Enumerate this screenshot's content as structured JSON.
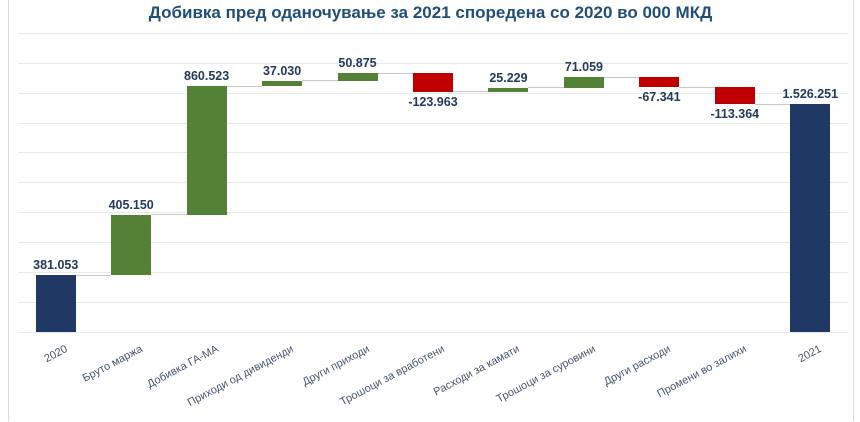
{
  "title": "Добивка пред оданочување за 2021 споредена со 2020 во 000 МКД",
  "colors": {
    "increase": "#538135",
    "decrease": "#C00000",
    "total": "#1F3864",
    "title_text": "#1F4E79",
    "data_label": "#24395E",
    "axis_label": "#44546A",
    "gridline": "#E9E9E9",
    "border": "#D9D9D9",
    "connector": "#C9C9C9",
    "background": "#FFFFFF"
  },
  "chart_data": {
    "type": "bar",
    "subtype": "waterfall",
    "title": "Добивка пред оданочување за 2021 споредена со 2020 во 000 МКД",
    "unit": "000 МКД",
    "categories": [
      "2020",
      "Бруто маржа",
      "Добивка ГА-МА",
      "Приходи од дивиденди",
      "Други приходи",
      "Трошоци за вработени",
      "Расходи за камати",
      "Трошоци за суровини",
      "Други расходи",
      "Промени во залихи",
      "2021"
    ],
    "values": [
      381053,
      405150,
      860523,
      37030,
      50875,
      -123963,
      25229,
      71059,
      -67341,
      -113364,
      1526251
    ],
    "data_labels": [
      "381.053",
      "405.150",
      "860.523",
      "37.030",
      "50.875",
      "-123.963",
      "25.229",
      "71.059",
      "-67.341",
      "-113.364",
      "1.526.251"
    ],
    "bar_roles": [
      "total",
      "increase",
      "increase",
      "increase",
      "increase",
      "decrease",
      "increase",
      "increase",
      "decrease",
      "decrease",
      "total"
    ],
    "ylim": [
      0,
      2000000
    ],
    "gridline_step": 200000,
    "y_axis_labels": "hidden",
    "legend": "none",
    "x_label_rotation_deg": -28
  }
}
